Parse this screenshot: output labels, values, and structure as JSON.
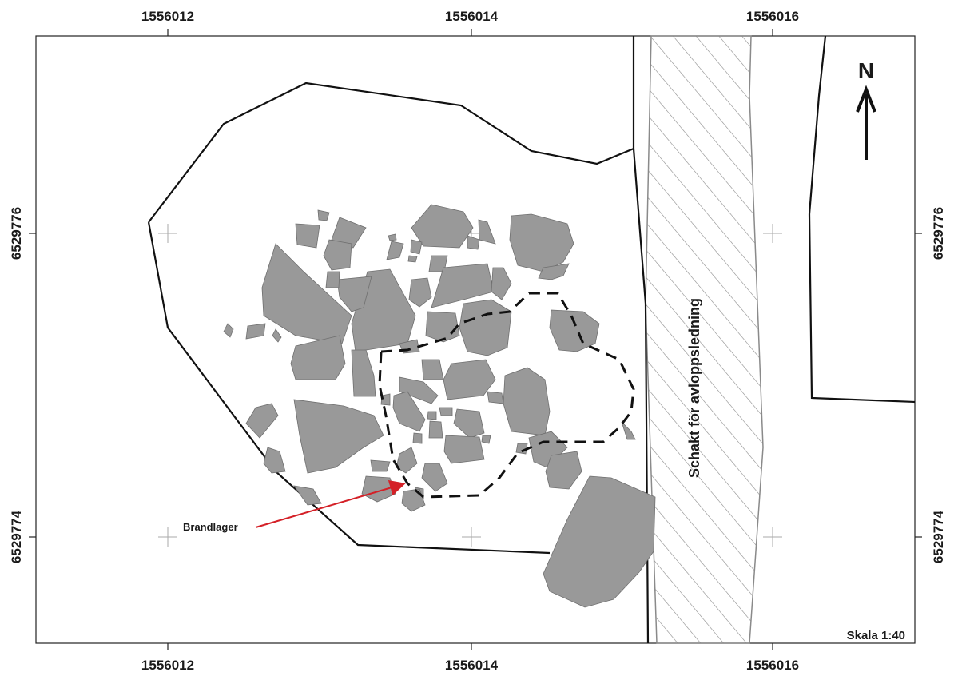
{
  "map": {
    "x_ticks": [
      "1556012",
      "1556014",
      "1556016"
    ],
    "y_ticks": [
      "6529776",
      "6529774"
    ],
    "scale_label": "Skala 1:40",
    "north_label": "N",
    "trench_label": "Schakt för avloppsledning",
    "annotation_label": "Brandlager",
    "colors": {
      "stone_fill": "#999999",
      "annotation_arrow": "#d42027",
      "outline": "#111111",
      "hatch": "#8a8a8a"
    },
    "icons": [
      "north-arrow-icon",
      "annotation-arrow-icon"
    ]
  }
}
